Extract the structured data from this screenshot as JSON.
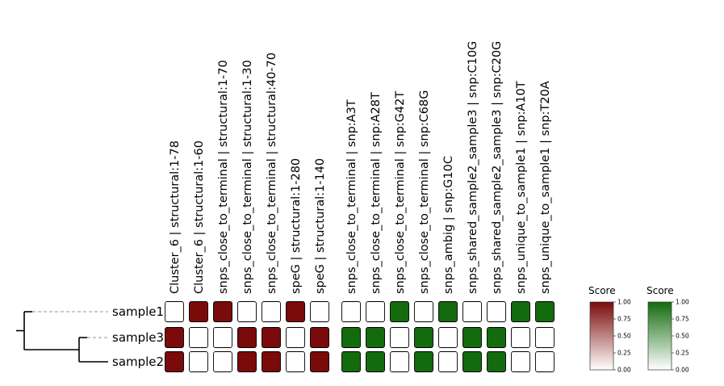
{
  "chart_data": {
    "type": "heatmap",
    "rows": [
      "sample1",
      "sample3",
      "sample2"
    ],
    "columns": [
      {
        "label": "Cluster_6 | structural:1-78",
        "group": "structural"
      },
      {
        "label": "Cluster_6 | structural:1-60",
        "group": "structural"
      },
      {
        "label": "snps_close_to_terminal | structural:1-70",
        "group": "structural"
      },
      {
        "label": "snps_close_to_terminal | structural:1-30",
        "group": "structural"
      },
      {
        "label": "snps_close_to_terminal | structural:40-70",
        "group": "structural"
      },
      {
        "label": "speG | structural:1-280",
        "group": "structural"
      },
      {
        "label": "speG | structural:1-140",
        "group": "structural"
      },
      {
        "label": "snps_close_to_terminal | snp:A3T",
        "group": "snp"
      },
      {
        "label": "snps_close_to_terminal | snp:A28T",
        "group": "snp"
      },
      {
        "label": "snps_close_to_terminal | snp:G42T",
        "group": "snp"
      },
      {
        "label": "snps_close_to_terminal | snp:C68G",
        "group": "snp"
      },
      {
        "label": "snps_ambig | snp:G10C",
        "group": "snp"
      },
      {
        "label": "snps_shared_sample2_sample3 | snp:C10G",
        "group": "snp"
      },
      {
        "label": "snps_shared_sample2_sample3 | snp:C20G",
        "group": "snp"
      },
      {
        "label": "snps_unique_to_sample1 | snp:A10T",
        "group": "snp"
      },
      {
        "label": "snps_unique_to_sample1 | snp:T20A",
        "group": "snp"
      }
    ],
    "values": [
      [
        0,
        1,
        1,
        0,
        0,
        1,
        0,
        0,
        0,
        1,
        0,
        1,
        0,
        0,
        1,
        1
      ],
      [
        1,
        0,
        0,
        1,
        1,
        0,
        1,
        1,
        1,
        0,
        1,
        0,
        1,
        1,
        0,
        0
      ],
      [
        1,
        0,
        0,
        1,
        1,
        0,
        1,
        1,
        1,
        0,
        1,
        0,
        1,
        1,
        0,
        0
      ]
    ],
    "dendrogram": {
      "tree": [
        [
          "sample1"
        ],
        [
          "sample3",
          "sample2"
        ]
      ]
    },
    "colorbars": [
      {
        "title": "Score",
        "group": "structural",
        "color_low": "#ffffff",
        "color_high": "#7b0a0a",
        "range": [
          0,
          1
        ],
        "ticks": [
          "0.00",
          "0.25",
          "0.50",
          "0.75",
          "1.00"
        ]
      },
      {
        "title": "Score",
        "group": "snp",
        "color_low": "#ffffff",
        "color_high": "#136b0e",
        "range": [
          0,
          1
        ],
        "ticks": [
          "0.00",
          "0.25",
          "0.50",
          "0.75",
          "1.00"
        ]
      }
    ],
    "colors": {
      "structural": "#7b0a0a",
      "snp": "#136b0e",
      "empty": "#ffffff",
      "edge": "#000000",
      "leaf_line": "#aaaaaa"
    }
  }
}
